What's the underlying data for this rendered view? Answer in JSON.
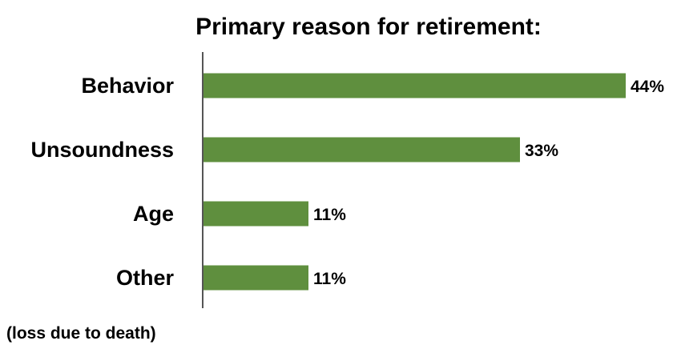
{
  "colors": {
    "bar": "#5f8f3e",
    "axis": "#555555",
    "text": "#000000",
    "background": "#ffffff"
  },
  "chart_data": {
    "type": "bar",
    "orientation": "horizontal",
    "title": "Primary reason for retirement:",
    "categories": [
      "Behavior",
      "Unsoundness",
      "Age",
      "Other"
    ],
    "values": [
      44,
      33,
      11,
      11
    ],
    "value_labels": [
      "44%",
      "33%",
      "11%",
      "11%"
    ],
    "unit": "%",
    "xlim": [
      0,
      44
    ],
    "grid": false,
    "legend": "none",
    "annotations": [
      "(loss due to death)"
    ]
  }
}
